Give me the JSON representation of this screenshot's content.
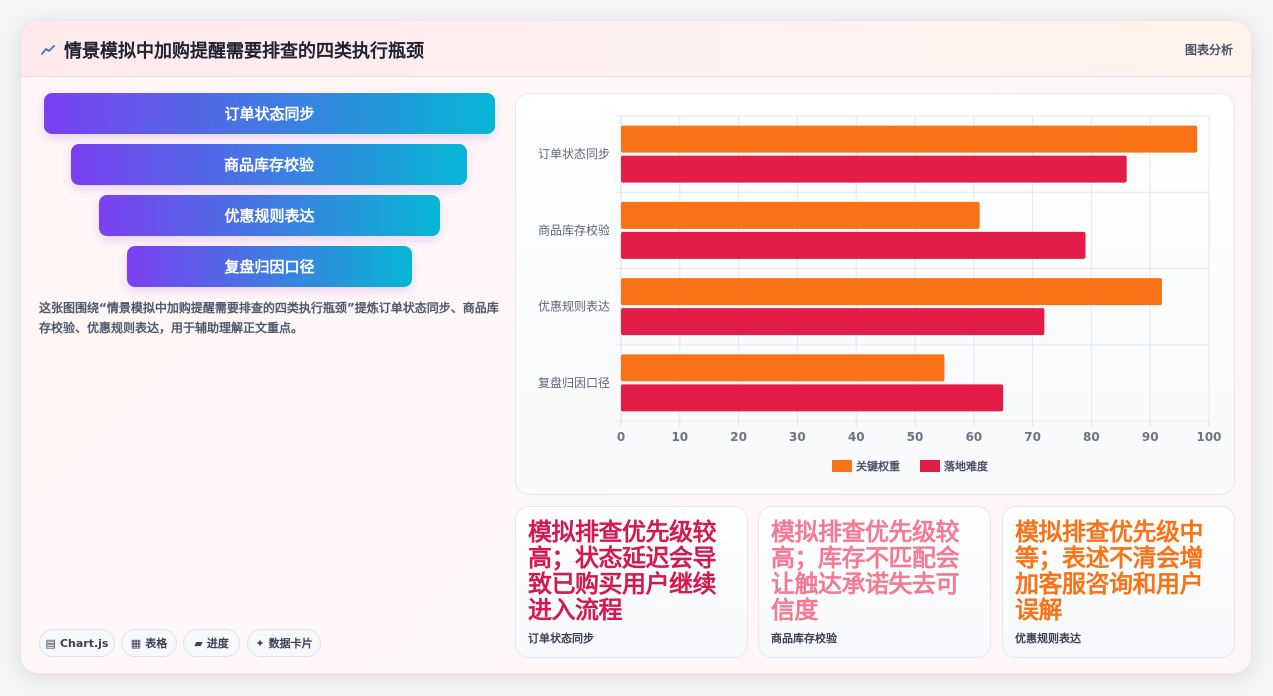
{
  "header": {
    "title": "情景模拟中加购提醒需要排查的四类执行瓶颈",
    "tag": "图表分析"
  },
  "funnel": [
    "订单状态同步",
    "商品库存校验",
    "优惠规则表达",
    "复盘归因口径"
  ],
  "description": "这张图围绕“情景模拟中加购提醒需要排查的四类执行瓶颈”提炼订单状态同步、商品库存校验、优惠规则表达，用于辅助理解正文重点。",
  "pills": [
    {
      "icon": "▤",
      "label": "Chart.js"
    },
    {
      "icon": "▦",
      "label": "表格"
    },
    {
      "icon": "▰",
      "label": "进度"
    },
    {
      "icon": "✦",
      "label": "数据卡片"
    }
  ],
  "chart_data": {
    "type": "bar",
    "orientation": "horizontal",
    "categories": [
      "订单状态同步",
      "商品库存校验",
      "优惠规则表达",
      "复盘归因口径"
    ],
    "series": [
      {
        "name": "关键权重",
        "values": [
          98,
          61,
          92,
          55
        ],
        "color": "#f97316"
      },
      {
        "name": "落地难度",
        "values": [
          86,
          79,
          72,
          65
        ],
        "color": "#e11d48"
      }
    ],
    "xlim": [
      0,
      100
    ],
    "xticks": [
      0,
      10,
      20,
      30,
      40,
      50,
      60,
      70,
      80,
      90,
      100
    ],
    "grid": true,
    "legend": "bottom"
  },
  "stat_cards": [
    {
      "text": "模拟排查优先级较高；状态延迟会导致已购买用户继续进入流程",
      "label": "订单状态同步",
      "color": "#d3194f"
    },
    {
      "text": "模拟排查优先级较高；库存不匹配会让触达承诺失去可信度",
      "label": "商品库存校验",
      "color": "#f47a93"
    },
    {
      "text": "模拟排查优先级中等；表述不清会增加客服咨询和用户误解",
      "label": "优惠规则表达",
      "color": "#f97316"
    }
  ]
}
